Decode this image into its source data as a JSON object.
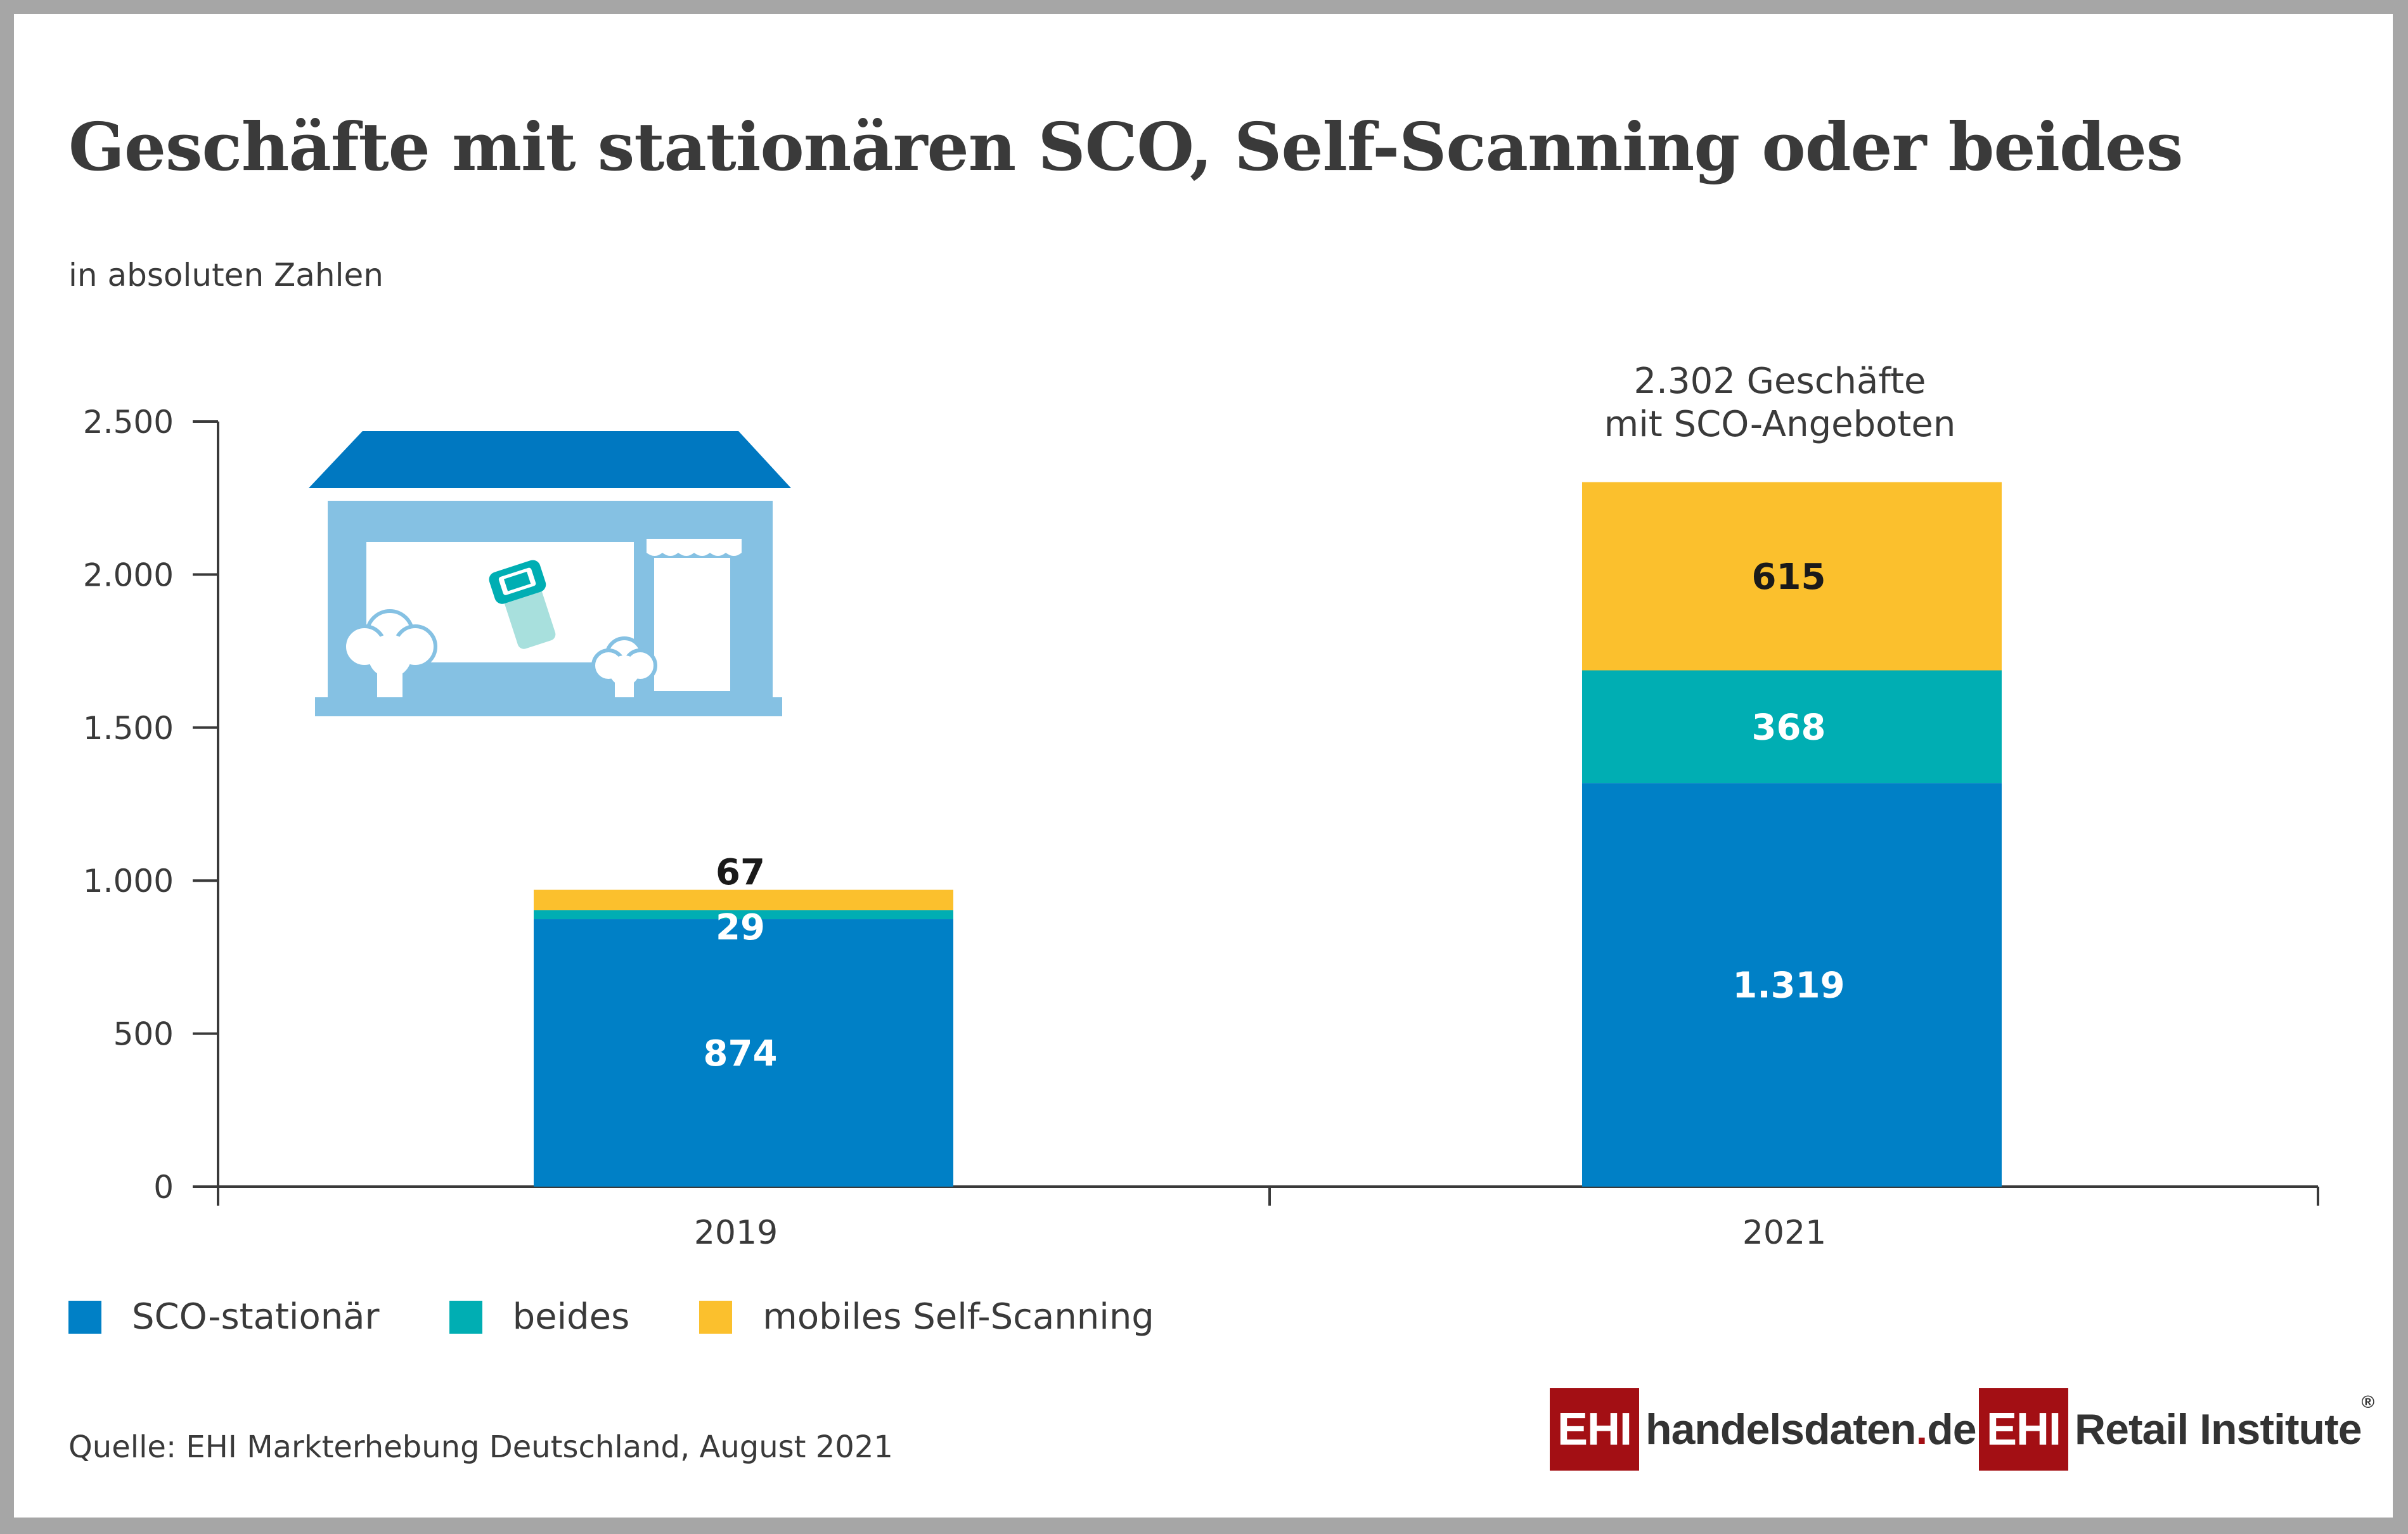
{
  "title": "Geschäfte mit stationären SCO, Self-Scanning oder beides",
  "subtitle": "in absoluten Zahlen",
  "annotation": {
    "line1": "2.302 Geschäfte",
    "line2": "mit SCO-Angeboten"
  },
  "source": "Quelle: EHI Markterhebung Deutschland, August 2021",
  "logos": {
    "left_box": "EHI",
    "left_text_main": "handelsdaten",
    "left_text_dot": ".",
    "left_text_tld": "de",
    "right_box": "EHI",
    "right_text": "Retail Institute",
    "right_reg": "®"
  },
  "illustration": "store-icon",
  "chart_data": {
    "type": "bar",
    "stacked": true,
    "title": "Geschäfte mit stationären SCO, Self-Scanning oder beides",
    "subtitle": "in absoluten Zahlen",
    "xlabel": "",
    "ylabel": "",
    "categories": [
      "2019",
      "2021"
    ],
    "series": [
      {
        "name": "SCO-stationär",
        "color": "#0080c6",
        "values": [
          874,
          1319
        ],
        "labels": [
          "874",
          "1.319"
        ],
        "label_color": "#ffffff"
      },
      {
        "name": "beides",
        "color": "#00aeb3",
        "values": [
          29,
          368
        ],
        "labels": [
          "29",
          "368"
        ],
        "label_color": "#ffffff"
      },
      {
        "name": "mobiles Self-Scanning",
        "color": "#fbc02d",
        "values": [
          67,
          615
        ],
        "labels": [
          "67",
          "615"
        ],
        "label_color": "#1a1a1a"
      }
    ],
    "totals": [
      970,
      2302
    ],
    "ylim": [
      0,
      2500
    ],
    "yticks": [
      0,
      500,
      1000,
      1500,
      2000,
      2500
    ],
    "ytick_labels": [
      "0",
      "500",
      "1.000",
      "1.500",
      "2.000",
      "2.500"
    ],
    "grid": false,
    "legend": "bottom-left"
  }
}
